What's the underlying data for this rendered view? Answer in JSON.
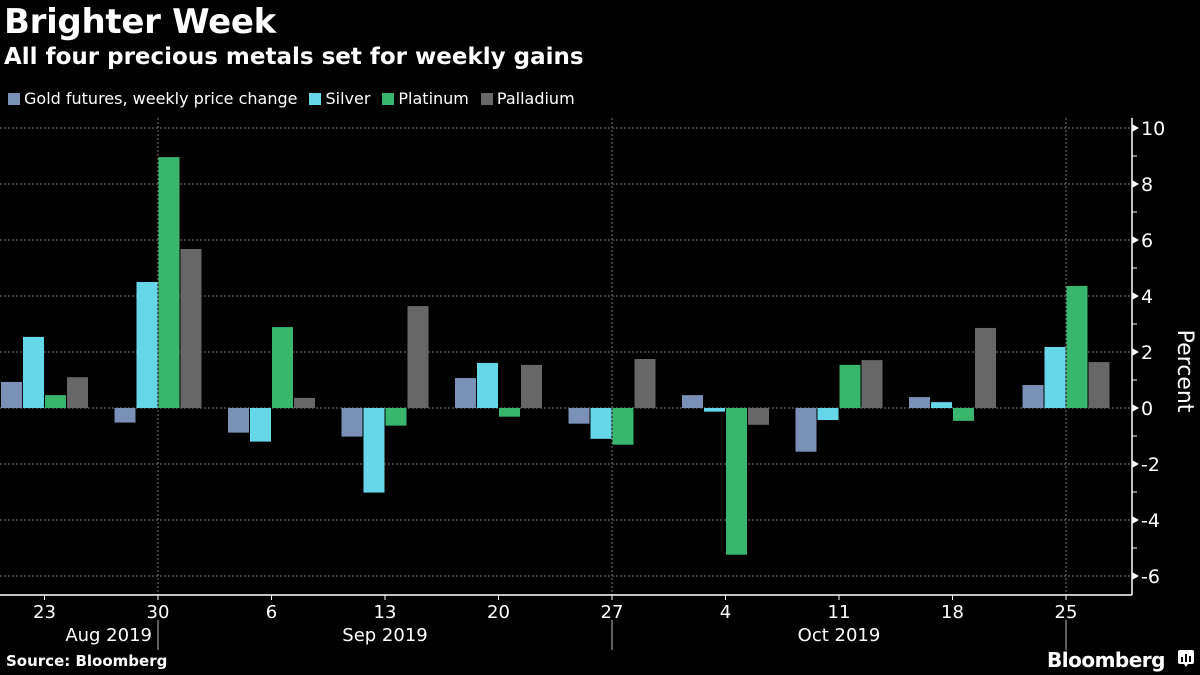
{
  "header": {
    "title": "Brighter Week",
    "subtitle": "All four precious metals set for weekly gains"
  },
  "footer": {
    "source": "Source: Bloomberg",
    "brand": "Bloomberg",
    "brand_icon": "bloomberg-chart-icon"
  },
  "chart_data": {
    "type": "bar",
    "title": "Brighter Week",
    "subtitle": "All four precious metals set for weekly gains",
    "xlabel": "",
    "ylabel": "Percent",
    "y_axis_side": "right",
    "ylim": [
      -6.5,
      10.4
    ],
    "yticks": [
      10,
      8,
      6,
      4,
      2,
      0,
      -2,
      -4,
      -6
    ],
    "grid": true,
    "legend_position": "top-left",
    "categories": [
      "23",
      "30",
      "6",
      "13",
      "20",
      "27",
      "4",
      "11",
      "18",
      "25"
    ],
    "month_labels": [
      {
        "label": "Aug 2019",
        "between": [
          "23",
          "30"
        ]
      },
      {
        "label": "Sep 2019",
        "between": [
          "6",
          "27"
        ]
      },
      {
        "label": "Oct 2019",
        "between": [
          "4",
          "25"
        ]
      }
    ],
    "series": [
      {
        "name": "Gold futures, weekly price change",
        "color": "#7A90B6",
        "values": [
          0.93,
          -0.52,
          -0.88,
          -1.02,
          1.07,
          -0.56,
          0.46,
          -1.56,
          0.39,
          0.82
        ]
      },
      {
        "name": "Silver",
        "color": "#66D7E8",
        "values": [
          2.54,
          4.5,
          -1.2,
          -3.02,
          1.61,
          -1.1,
          -0.13,
          -0.43,
          0.21,
          2.18
        ]
      },
      {
        "name": "Platinum",
        "color": "#38B66D",
        "values": [
          0.46,
          8.96,
          2.89,
          -0.63,
          -0.31,
          -1.31,
          -5.24,
          1.54,
          -0.46,
          4.36
        ]
      },
      {
        "name": "Palladium",
        "color": "#676767",
        "values": [
          1.1,
          5.68,
          0.36,
          3.64,
          1.54,
          1.75,
          -0.6,
          1.71,
          2.86,
          1.64
        ]
      }
    ]
  }
}
